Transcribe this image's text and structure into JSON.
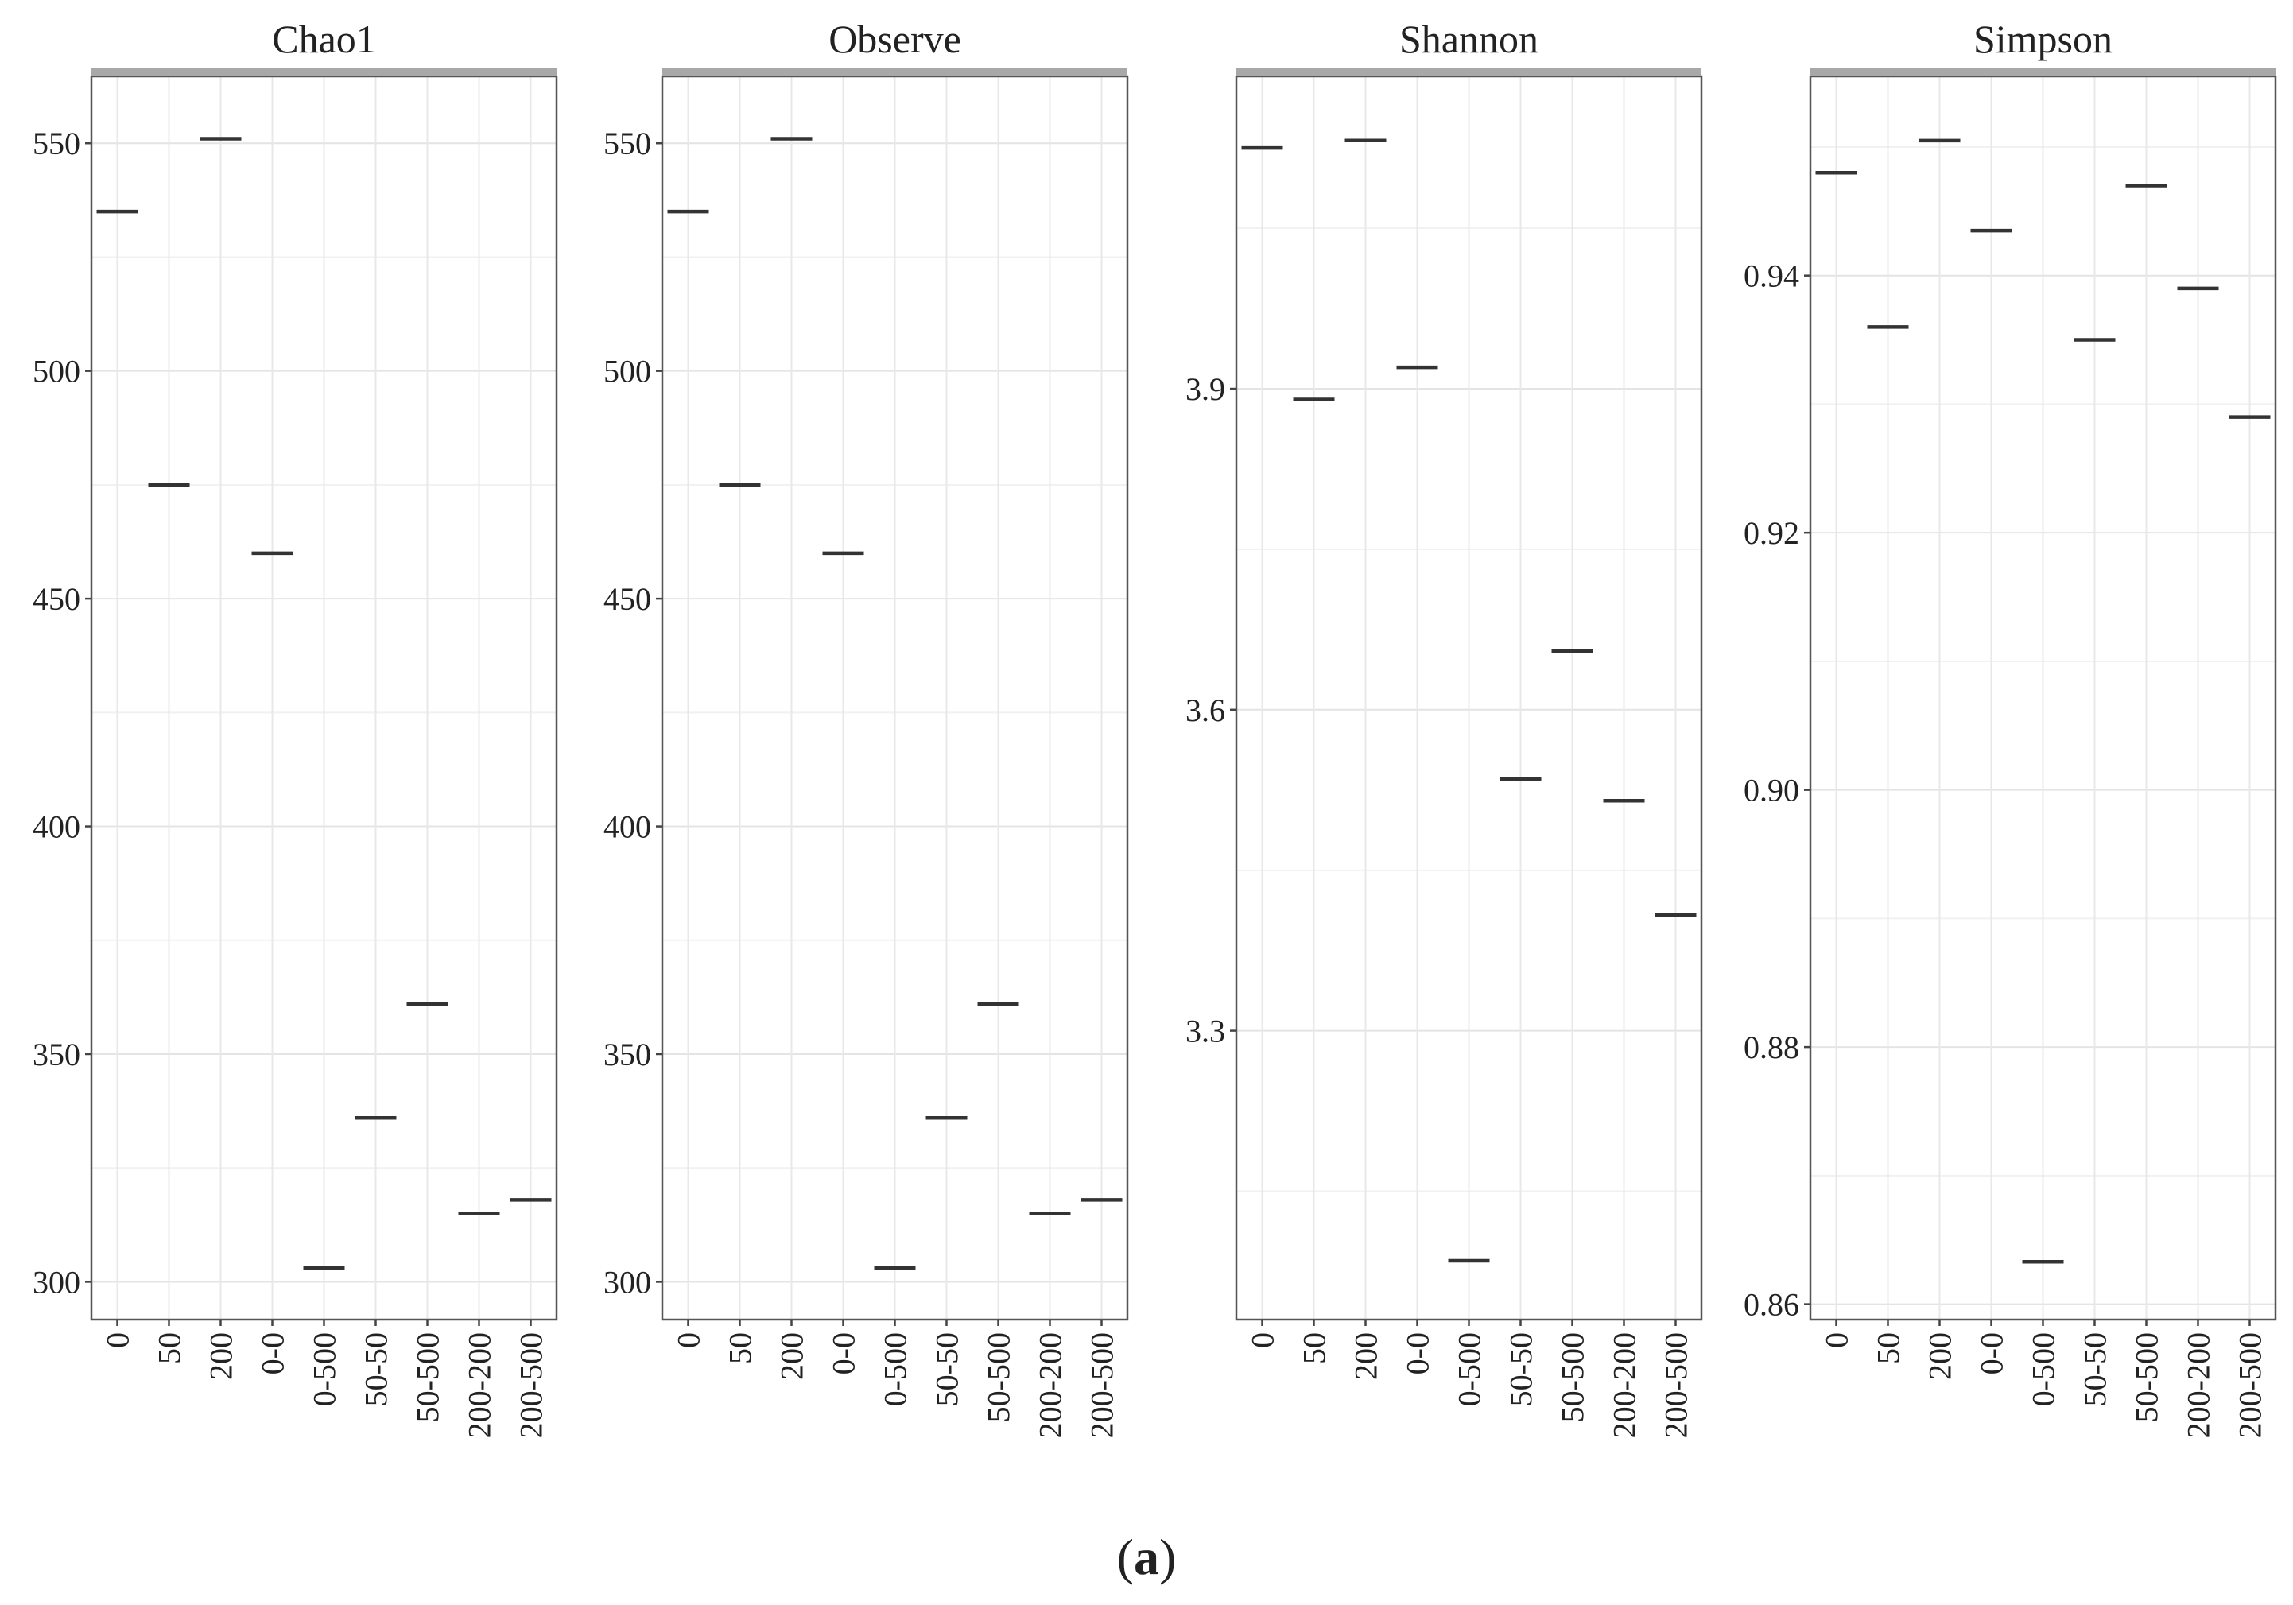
{
  "figure": {
    "label_open": "(",
    "label_letter": "a",
    "label_close": ")"
  },
  "chart_data": [
    {
      "type": "scatter",
      "marker": "horizontal-dash",
      "title": "Chao1",
      "categories": [
        "0",
        "50",
        "200",
        "0-0",
        "0-500",
        "50-50",
        "50-500",
        "200-200",
        "200-500"
      ],
      "values": [
        535,
        475,
        551,
        460,
        303,
        336,
        361,
        315,
        318
      ],
      "ylim": [
        291.7,
        564.7
      ],
      "yticks": [
        300,
        350,
        400,
        450,
        500,
        550
      ],
      "ytick_labels": [
        "300",
        "350",
        "400",
        "450",
        "500",
        "550"
      ],
      "grid": true,
      "xlabel": "",
      "ylabel": ""
    },
    {
      "type": "scatter",
      "marker": "horizontal-dash",
      "title": "Observe",
      "categories": [
        "0",
        "50",
        "200",
        "0-0",
        "0-500",
        "50-50",
        "50-500",
        "200-200",
        "200-500"
      ],
      "values": [
        535,
        475,
        551,
        460,
        303,
        336,
        361,
        315,
        318
      ],
      "ylim": [
        291.7,
        564.7
      ],
      "yticks": [
        300,
        350,
        400,
        450,
        500,
        550
      ],
      "ytick_labels": [
        "300",
        "350",
        "400",
        "450",
        "500",
        "550"
      ],
      "grid": true,
      "xlabel": "",
      "ylabel": ""
    },
    {
      "type": "scatter",
      "marker": "horizontal-dash",
      "title": "Shannon",
      "categories": [
        "0",
        "50",
        "200",
        "0-0",
        "0-500",
        "50-50",
        "50-500",
        "200-200",
        "200-500"
      ],
      "values": [
        4.125,
        3.89,
        4.132,
        3.92,
        3.085,
        3.535,
        3.655,
        3.515,
        3.408
      ],
      "ylim": [
        3.03,
        4.192
      ],
      "yticks": [
        3.3,
        3.6,
        3.9
      ],
      "ytick_labels": [
        "3.3",
        "3.6",
        "3.9"
      ],
      "grid": true,
      "xlabel": "",
      "ylabel": ""
    },
    {
      "type": "scatter",
      "marker": "horizontal-dash",
      "title": "Simpson",
      "categories": [
        "0",
        "50",
        "200",
        "0-0",
        "0-500",
        "50-50",
        "50-500",
        "200-200",
        "200-500"
      ],
      "values": [
        0.948,
        0.936,
        0.9505,
        0.9435,
        0.8633,
        0.935,
        0.947,
        0.939,
        0.929
      ],
      "ylim": [
        0.8588,
        0.9555
      ],
      "yticks": [
        0.86,
        0.88,
        0.9,
        0.92,
        0.94
      ],
      "ytick_labels": [
        "0.86",
        "0.88",
        "0.90",
        "0.92",
        "0.94"
      ],
      "grid": true,
      "xlabel": "",
      "ylabel": ""
    }
  ]
}
